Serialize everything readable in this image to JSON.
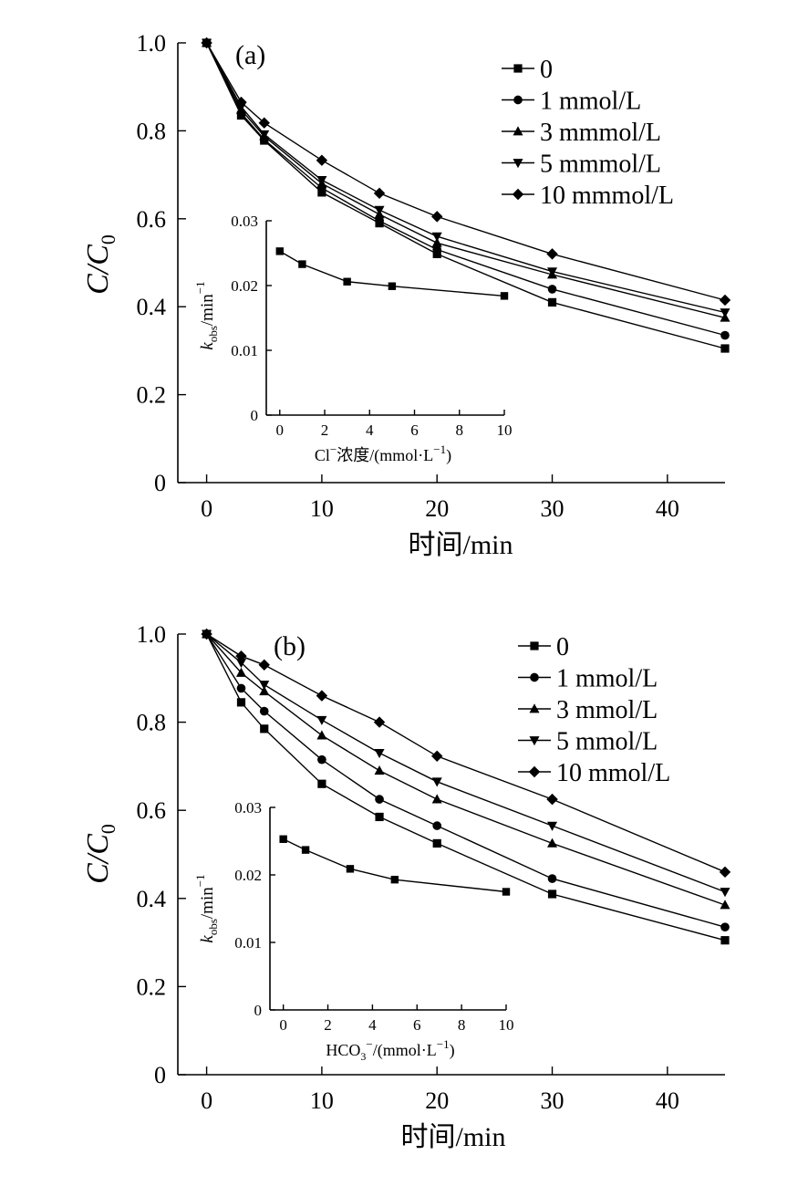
{
  "chart_data": [
    {
      "type": "line",
      "panel_label": "(a)",
      "ylabel_main": "C/C",
      "ylabel_sub": "0",
      "xlabel": "时间/min",
      "xlim": [
        -2.5,
        45
      ],
      "ylim": [
        0,
        1.0
      ],
      "xticks": [
        "0",
        "10",
        "20",
        "30",
        "40"
      ],
      "yticks": [
        "0",
        "0.2",
        "0.4",
        "0.6",
        "0.8",
        "1.0"
      ],
      "x": [
        0,
        3,
        5,
        10,
        15,
        20,
        30,
        45
      ],
      "series": [
        {
          "name": "0",
          "marker": "square",
          "values": [
            1.0,
            0.835,
            0.778,
            0.66,
            0.59,
            0.52,
            0.41,
            0.305
          ]
        },
        {
          "name": "1 mmol/L",
          "marker": "circle",
          "values": [
            1.0,
            0.84,
            0.78,
            0.67,
            0.595,
            0.53,
            0.44,
            0.335
          ]
        },
        {
          "name": "3 mmmol/L",
          "marker": "triangle-up",
          "values": [
            1.0,
            0.848,
            0.788,
            0.68,
            0.61,
            0.545,
            0.473,
            0.375
          ]
        },
        {
          "name": "5 mmmol/L",
          "marker": "triangle-down",
          "values": [
            1.0,
            0.855,
            0.792,
            0.688,
            0.62,
            0.56,
            0.48,
            0.387
          ]
        },
        {
          "name": "10 mmmol/L",
          "marker": "diamond",
          "values": [
            1.0,
            0.865,
            0.818,
            0.733,
            0.658,
            0.605,
            0.52,
            0.415
          ]
        }
      ],
      "inset": {
        "type": "line",
        "ylabel_main": "k",
        "ylabel_sub": "obs",
        "ylabel_rest": "/min",
        "ylabel_sup": "−1",
        "xlabel_pre": "Cl",
        "xlabel_sup1": "−",
        "xlabel_mid": "浓度/(mmol·L",
        "xlabel_sup2": "−1",
        "xlabel_post": ")",
        "xlim": [
          -0.6,
          10
        ],
        "ylim": [
          0,
          0.03
        ],
        "xticks": [
          "0",
          "2",
          "4",
          "6",
          "8",
          "10"
        ],
        "yticks": [
          "0",
          "0.01",
          "0.02",
          "0.03"
        ],
        "x": [
          0,
          1,
          3,
          5,
          10
        ],
        "values": [
          0.0253,
          0.0233,
          0.0206,
          0.0199,
          0.0184
        ]
      }
    },
    {
      "type": "line",
      "panel_label": "(b)",
      "ylabel_main": "C/C",
      "ylabel_sub": "0",
      "xlabel": "时间/min",
      "xlim": [
        -2.5,
        45
      ],
      "ylim": [
        0,
        1.0
      ],
      "xticks": [
        "0",
        "10",
        "20",
        "30",
        "40"
      ],
      "yticks": [
        "0",
        "0.2",
        "0.4",
        "0.6",
        "0.8",
        "1.0"
      ],
      "x": [
        0,
        3,
        5,
        10,
        15,
        20,
        30,
        45
      ],
      "series": [
        {
          "name": "0",
          "marker": "square",
          "values": [
            1.0,
            0.845,
            0.785,
            0.66,
            0.585,
            0.525,
            0.41,
            0.305
          ]
        },
        {
          "name": "1 mmol/L",
          "marker": "circle",
          "values": [
            1.0,
            0.877,
            0.825,
            0.715,
            0.625,
            0.565,
            0.445,
            0.335
          ]
        },
        {
          "name": "3 mmol/L",
          "marker": "triangle-up",
          "values": [
            1.0,
            0.912,
            0.87,
            0.77,
            0.69,
            0.625,
            0.525,
            0.385
          ]
        },
        {
          "name": "5 mmol/L",
          "marker": "triangle-down",
          "values": [
            1.0,
            0.935,
            0.885,
            0.805,
            0.73,
            0.665,
            0.565,
            0.415
          ]
        },
        {
          "name": "10 mmol/L",
          "marker": "diamond",
          "values": [
            1.0,
            0.95,
            0.93,
            0.86,
            0.8,
            0.723,
            0.625,
            0.46
          ]
        }
      ],
      "inset": {
        "type": "line",
        "ylabel_main": "k",
        "ylabel_sub": "obs",
        "ylabel_rest": "/min",
        "ylabel_sup": "−1",
        "xlabel_pre": "HCO",
        "xlabel_sub": "3",
        "xlabel_sup1": "−",
        "xlabel_mid": "/(mmol·L",
        "xlabel_sup2": "−1",
        "xlabel_post": ")",
        "xlim": [
          -0.6,
          10
        ],
        "ylim": [
          0,
          0.03
        ],
        "xticks": [
          "0",
          "2",
          "4",
          "6",
          "8",
          "10"
        ],
        "yticks": [
          "0",
          "0.01",
          "0.02",
          "0.03"
        ],
        "x": [
          0,
          1,
          3,
          5,
          10
        ],
        "values": [
          0.0253,
          0.0237,
          0.0209,
          0.0193,
          0.0175
        ]
      }
    }
  ]
}
